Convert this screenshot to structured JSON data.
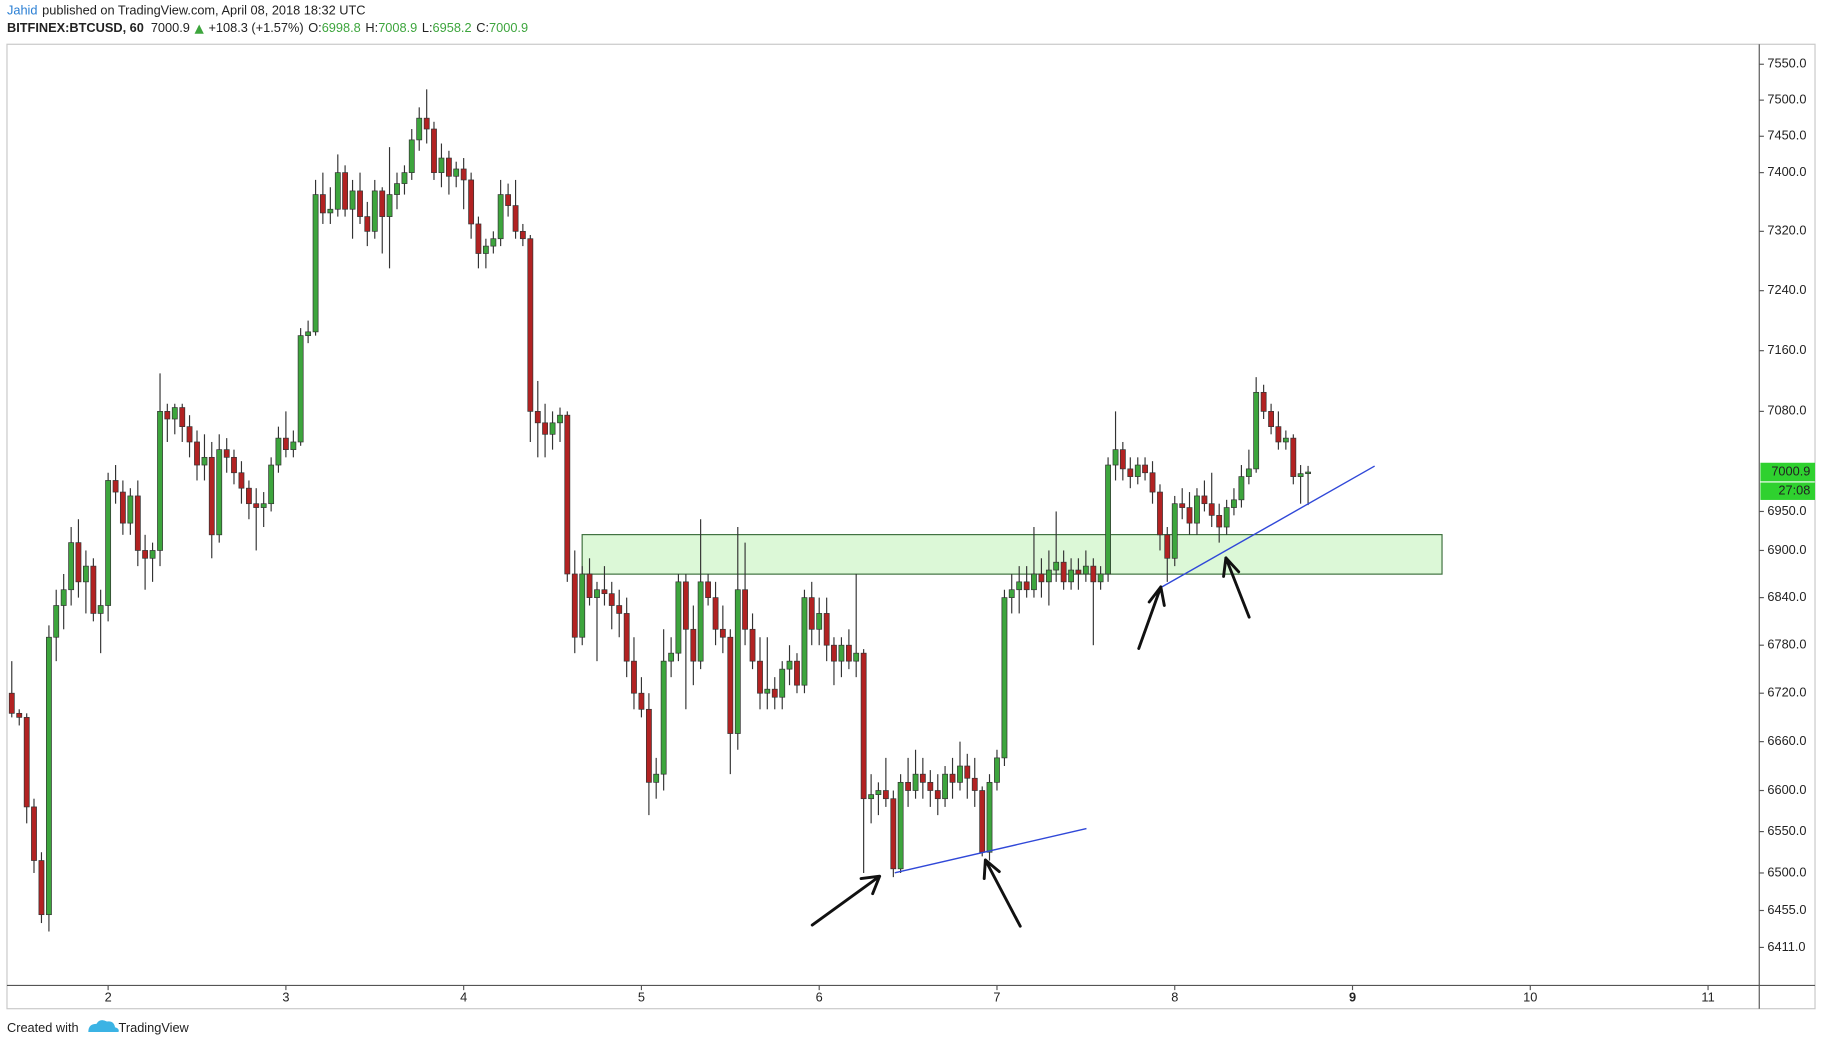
{
  "header": {
    "author": "Jahid",
    "published": "published on TradingView.com, April 08, 2018 18:32 UTC",
    "symbol": "BITFINEX:BTCUSD, 60",
    "price": 7000.9,
    "change": "+108.3 (+1.57%)",
    "ohlc": [
      {
        "label": "O:",
        "value": 6998.8
      },
      {
        "label": "H:",
        "value": 7008.9
      },
      {
        "label": "L:",
        "value": 6958.2
      },
      {
        "label": "C:",
        "value": 7000.9
      }
    ]
  },
  "footer": {
    "created": "Created with",
    "brand": "TradingView"
  },
  "chart_data": {
    "type": "candlestick",
    "log_scale": true,
    "grid": false,
    "up_color": "#3da53d",
    "down_color": "#b22222",
    "wick_color": "#333333",
    "last_color": "#2fd12f",
    "xlim": [
      1.431,
      11.288
    ],
    "xticks": [
      2,
      3,
      4,
      5,
      6,
      7,
      8,
      9,
      10,
      11
    ],
    "ylim": [
      6366,
      7578
    ],
    "yticks": [
      {
        "value": 7550,
        "label": "7550.0"
      },
      {
        "value": 7500,
        "label": "7500.0"
      },
      {
        "value": 7450,
        "label": "7450.0"
      },
      {
        "value": 7400,
        "label": "7400.0"
      },
      {
        "value": 7320,
        "label": "7320.0"
      },
      {
        "value": 7240,
        "label": "7240.0"
      },
      {
        "value": 7160,
        "label": "7160.0"
      },
      {
        "value": 7080,
        "label": "7080.0"
      },
      {
        "value": 6950,
        "label": "6950.0"
      },
      {
        "value": 6900,
        "label": "6900.0"
      },
      {
        "value": 6840,
        "label": "6840.0"
      },
      {
        "value": 6780,
        "label": "6780.0"
      },
      {
        "value": 6720,
        "label": "6720.0"
      },
      {
        "value": 6660,
        "label": "6660.0"
      },
      {
        "value": 6600,
        "label": "6600.0"
      },
      {
        "value": 6550,
        "label": "6550.0"
      },
      {
        "value": 6500,
        "label": "6500.0"
      },
      {
        "value": 6455,
        "label": "6455.0"
      },
      {
        "value": 6411,
        "label": "6411.0"
      }
    ],
    "last_price": 7000.9,
    "countdown": "27:08",
    "x": [
      1.458,
      1.5,
      1.542,
      1.583,
      1.625,
      1.667,
      1.708,
      1.75,
      1.792,
      1.833,
      1.875,
      1.917,
      1.958,
      2,
      2.042,
      2.083,
      2.125,
      2.167,
      2.208,
      2.25,
      2.292,
      2.333,
      2.375,
      2.417,
      2.458,
      2.5,
      2.542,
      2.583,
      2.625,
      2.667,
      2.708,
      2.75,
      2.792,
      2.833,
      2.875,
      2.917,
      2.958,
      3,
      3.042,
      3.083,
      3.125,
      3.167,
      3.208,
      3.25,
      3.292,
      3.333,
      3.375,
      3.417,
      3.458,
      3.5,
      3.542,
      3.583,
      3.625,
      3.667,
      3.708,
      3.75,
      3.792,
      3.833,
      3.875,
      3.917,
      3.958,
      4,
      4.042,
      4.083,
      4.125,
      4.167,
      4.208,
      4.25,
      4.292,
      4.333,
      4.375,
      4.417,
      4.458,
      4.5,
      4.542,
      4.583,
      4.625,
      4.667,
      4.708,
      4.75,
      4.792,
      4.833,
      4.875,
      4.917,
      4.958,
      5,
      5.042,
      5.083,
      5.125,
      5.167,
      5.208,
      5.25,
      5.292,
      5.333,
      5.375,
      5.417,
      5.458,
      5.5,
      5.542,
      5.583,
      5.625,
      5.667,
      5.708,
      5.75,
      5.792,
      5.833,
      5.875,
      5.917,
      5.958,
      6,
      6.042,
      6.083,
      6.125,
      6.167,
      6.208,
      6.25,
      6.292,
      6.333,
      6.375,
      6.417,
      6.458,
      6.5,
      6.542,
      6.583,
      6.625,
      6.667,
      6.708,
      6.75,
      6.792,
      6.833,
      6.875,
      6.917,
      6.958,
      7,
      7.042,
      7.083,
      7.125,
      7.167,
      7.208,
      7.25,
      7.292,
      7.333,
      7.375,
      7.417,
      7.458,
      7.5,
      7.542,
      7.583,
      7.625,
      7.667,
      7.708,
      7.75,
      7.792,
      7.833,
      7.875,
      7.917,
      7.958,
      8,
      8.042,
      8.083,
      8.125,
      8.167,
      8.208,
      8.25,
      8.292,
      8.333,
      8.375,
      8.417,
      8.458,
      8.5,
      8.542,
      8.583,
      8.625,
      8.667,
      8.708,
      8.75
    ],
    "ohlc": [
      [
        6720,
        6760,
        6690,
        6695
      ],
      [
        6695,
        6700,
        6680,
        6690
      ],
      [
        6690,
        6695,
        6560,
        6580
      ],
      [
        6580,
        6590,
        6500,
        6515
      ],
      [
        6515,
        6525,
        6440,
        6450
      ],
      [
        6450,
        6805,
        6430,
        6790
      ],
      [
        6790,
        6850,
        6760,
        6830
      ],
      [
        6830,
        6870,
        6800,
        6850
      ],
      [
        6850,
        6930,
        6830,
        6910
      ],
      [
        6910,
        6940,
        6840,
        6860
      ],
      [
        6860,
        6900,
        6820,
        6880
      ],
      [
        6880,
        6890,
        6810,
        6820
      ],
      [
        6820,
        6850,
        6770,
        6830
      ],
      [
        6830,
        7000,
        6810,
        6990
      ],
      [
        6990,
        7010,
        6960,
        6975
      ],
      [
        6975,
        6990,
        6920,
        6935
      ],
      [
        6935,
        6980,
        6920,
        6970
      ],
      [
        6970,
        6990,
        6880,
        6900
      ],
      [
        6900,
        6920,
        6850,
        6890
      ],
      [
        6890,
        6910,
        6860,
        6900
      ],
      [
        6900,
        7130,
        6880,
        7080
      ],
      [
        7080,
        7090,
        7040,
        7070
      ],
      [
        7070,
        7090,
        7050,
        7085
      ],
      [
        7085,
        7090,
        7040,
        7060
      ],
      [
        7060,
        7075,
        7020,
        7040
      ],
      [
        7040,
        7055,
        6990,
        7010
      ],
      [
        7010,
        7050,
        6990,
        7020
      ],
      [
        7020,
        7040,
        6890,
        6920
      ],
      [
        6920,
        7050,
        6910,
        7030
      ],
      [
        7030,
        7045,
        7000,
        7020
      ],
      [
        7020,
        7030,
        6985,
        7000
      ],
      [
        7000,
        7015,
        6960,
        6980
      ],
      [
        6980,
        6990,
        6940,
        6960
      ],
      [
        6960,
        6980,
        6900,
        6955
      ],
      [
        6955,
        6975,
        6930,
        6960
      ],
      [
        6960,
        7020,
        6950,
        7010
      ],
      [
        7010,
        7060,
        7000,
        7045
      ],
      [
        7045,
        7080,
        7020,
        7030
      ],
      [
        7030,
        7055,
        7020,
        7040
      ],
      [
        7040,
        7190,
        7035,
        7180
      ],
      [
        7180,
        7200,
        7170,
        7185
      ],
      [
        7185,
        7390,
        7180,
        7370
      ],
      [
        7370,
        7400,
        7330,
        7345
      ],
      [
        7345,
        7380,
        7330,
        7350
      ],
      [
        7350,
        7425,
        7340,
        7400
      ],
      [
        7400,
        7410,
        7340,
        7350
      ],
      [
        7350,
        7390,
        7310,
        7375
      ],
      [
        7375,
        7400,
        7330,
        7340
      ],
      [
        7340,
        7360,
        7300,
        7320
      ],
      [
        7320,
        7390,
        7310,
        7375
      ],
      [
        7375,
        7380,
        7290,
        7340
      ],
      [
        7340,
        7435,
        7270,
        7370
      ],
      [
        7370,
        7400,
        7350,
        7385
      ],
      [
        7385,
        7410,
        7370,
        7400
      ],
      [
        7400,
        7460,
        7390,
        7445
      ],
      [
        7445,
        7490,
        7430,
        7475
      ],
      [
        7475,
        7515,
        7440,
        7460
      ],
      [
        7460,
        7470,
        7390,
        7400
      ],
      [
        7400,
        7440,
        7380,
        7420
      ],
      [
        7420,
        7430,
        7370,
        7395
      ],
      [
        7395,
        7415,
        7380,
        7405
      ],
      [
        7405,
        7420,
        7350,
        7390
      ],
      [
        7390,
        7400,
        7310,
        7330
      ],
      [
        7330,
        7340,
        7270,
        7290
      ],
      [
        7290,
        7310,
        7270,
        7300
      ],
      [
        7300,
        7320,
        7290,
        7310
      ],
      [
        7310,
        7390,
        7300,
        7370
      ],
      [
        7370,
        7385,
        7340,
        7355
      ],
      [
        7355,
        7390,
        7310,
        7320
      ],
      [
        7320,
        7330,
        7300,
        7310
      ],
      [
        7310,
        7315,
        7040,
        7080
      ],
      [
        7080,
        7120,
        7020,
        7065
      ],
      [
        7065,
        7090,
        7020,
        7050
      ],
      [
        7050,
        7080,
        7030,
        7065
      ],
      [
        7065,
        7085,
        7040,
        7075
      ],
      [
        7075,
        7080,
        6860,
        6870
      ],
      [
        6870,
        6900,
        6770,
        6790
      ],
      [
        6790,
        6880,
        6780,
        6870
      ],
      [
        6870,
        6890,
        6830,
        6840
      ],
      [
        6840,
        6860,
        6760,
        6850
      ],
      [
        6850,
        6880,
        6830,
        6845
      ],
      [
        6845,
        6860,
        6800,
        6830
      ],
      [
        6830,
        6850,
        6790,
        6820
      ],
      [
        6820,
        6840,
        6740,
        6760
      ],
      [
        6760,
        6790,
        6700,
        6720
      ],
      [
        6720,
        6740,
        6690,
        6700
      ],
      [
        6700,
        6720,
        6570,
        6610
      ],
      [
        6610,
        6640,
        6590,
        6620
      ],
      [
        6620,
        6800,
        6600,
        6760
      ],
      [
        6760,
        6790,
        6740,
        6770
      ],
      [
        6770,
        6870,
        6760,
        6860
      ],
      [
        6860,
        6870,
        6700,
        6800
      ],
      [
        6800,
        6830,
        6730,
        6760
      ],
      [
        6760,
        6940,
        6750,
        6860
      ],
      [
        6860,
        6870,
        6830,
        6840
      ],
      [
        6840,
        6860,
        6780,
        6800
      ],
      [
        6800,
        6830,
        6770,
        6790
      ],
      [
        6790,
        6800,
        6620,
        6670
      ],
      [
        6670,
        6930,
        6650,
        6850
      ],
      [
        6850,
        6910,
        6780,
        6800
      ],
      [
        6800,
        6820,
        6750,
        6760
      ],
      [
        6760,
        6790,
        6700,
        6720
      ],
      [
        6720,
        6790,
        6700,
        6725
      ],
      [
        6725,
        6740,
        6700,
        6715
      ],
      [
        6715,
        6760,
        6700,
        6750
      ],
      [
        6750,
        6780,
        6730,
        6760
      ],
      [
        6760,
        6770,
        6720,
        6730
      ],
      [
        6730,
        6850,
        6720,
        6840
      ],
      [
        6840,
        6860,
        6780,
        6800
      ],
      [
        6800,
        6840,
        6780,
        6820
      ],
      [
        6820,
        6840,
        6760,
        6780
      ],
      [
        6780,
        6790,
        6730,
        6760
      ],
      [
        6760,
        6790,
        6740,
        6780
      ],
      [
        6780,
        6800,
        6750,
        6760
      ],
      [
        6760,
        6870,
        6740,
        6770
      ],
      [
        6770,
        6775,
        6500,
        6590
      ],
      [
        6590,
        6620,
        6560,
        6595
      ],
      [
        6595,
        6610,
        6570,
        6600
      ],
      [
        6600,
        6640,
        6580,
        6590
      ],
      [
        6590,
        6600,
        6495,
        6505
      ],
      [
        6505,
        6620,
        6500,
        6610
      ],
      [
        6610,
        6640,
        6580,
        6600
      ],
      [
        6600,
        6650,
        6590,
        6620
      ],
      [
        6620,
        6640,
        6590,
        6610
      ],
      [
        6610,
        6625,
        6580,
        6600
      ],
      [
        6600,
        6620,
        6570,
        6590
      ],
      [
        6590,
        6630,
        6580,
        6620
      ],
      [
        6620,
        6640,
        6590,
        6610
      ],
      [
        6610,
        6660,
        6600,
        6630
      ],
      [
        6630,
        6645,
        6590,
        6615
      ],
      [
        6615,
        6640,
        6580,
        6600
      ],
      [
        6600,
        6605,
        6520,
        6525
      ],
      [
        6525,
        6620,
        6515,
        6610
      ],
      [
        6610,
        6650,
        6600,
        6640
      ],
      [
        6640,
        6850,
        6630,
        6840
      ],
      [
        6840,
        6870,
        6820,
        6850
      ],
      [
        6850,
        6880,
        6820,
        6860
      ],
      [
        6860,
        6880,
        6840,
        6850
      ],
      [
        6850,
        6930,
        6840,
        6870
      ],
      [
        6870,
        6890,
        6840,
        6860
      ],
      [
        6860,
        6900,
        6830,
        6875
      ],
      [
        6875,
        6950,
        6860,
        6885
      ],
      [
        6885,
        6900,
        6850,
        6860
      ],
      [
        6860,
        6890,
        6850,
        6875
      ],
      [
        6875,
        6890,
        6850,
        6870
      ],
      [
        6870,
        6900,
        6860,
        6880
      ],
      [
        6880,
        6890,
        6780,
        6860
      ],
      [
        6860,
        6880,
        6850,
        6870
      ],
      [
        6870,
        7020,
        6860,
        7010
      ],
      [
        7010,
        7080,
        6990,
        7030
      ],
      [
        7030,
        7040,
        6990,
        7005
      ],
      [
        7005,
        7020,
        6980,
        6995
      ],
      [
        6995,
        7020,
        6985,
        7010
      ],
      [
        7010,
        7020,
        6990,
        7000
      ],
      [
        7000,
        7015,
        6960,
        6975
      ],
      [
        6975,
        6985,
        6900,
        6920
      ],
      [
        6920,
        6930,
        6860,
        6890
      ],
      [
        6890,
        6970,
        6880,
        6960
      ],
      [
        6960,
        6980,
        6940,
        6955
      ],
      [
        6955,
        6975,
        6920,
        6935
      ],
      [
        6935,
        6980,
        6920,
        6970
      ],
      [
        6970,
        6990,
        6950,
        6960
      ],
      [
        6960,
        7000,
        6930,
        6945
      ],
      [
        6945,
        6960,
        6910,
        6930
      ],
      [
        6930,
        6965,
        6920,
        6955
      ],
      [
        6955,
        6980,
        6945,
        6965
      ],
      [
        6965,
        7010,
        6955,
        6995
      ],
      [
        6995,
        7030,
        6985,
        7005
      ],
      [
        7005,
        7125,
        7000,
        7105
      ],
      [
        7105,
        7115,
        7070,
        7080
      ],
      [
        7080,
        7090,
        7050,
        7060
      ],
      [
        7060,
        7080,
        7030,
        7040
      ],
      [
        7040,
        7055,
        7030,
        7045
      ],
      [
        7045,
        7050,
        6985,
        6995
      ],
      [
        6995,
        7010,
        6960,
        6998.8
      ],
      [
        6998.8,
        7008.9,
        6958.2,
        7000.9
      ]
    ]
  }
}
